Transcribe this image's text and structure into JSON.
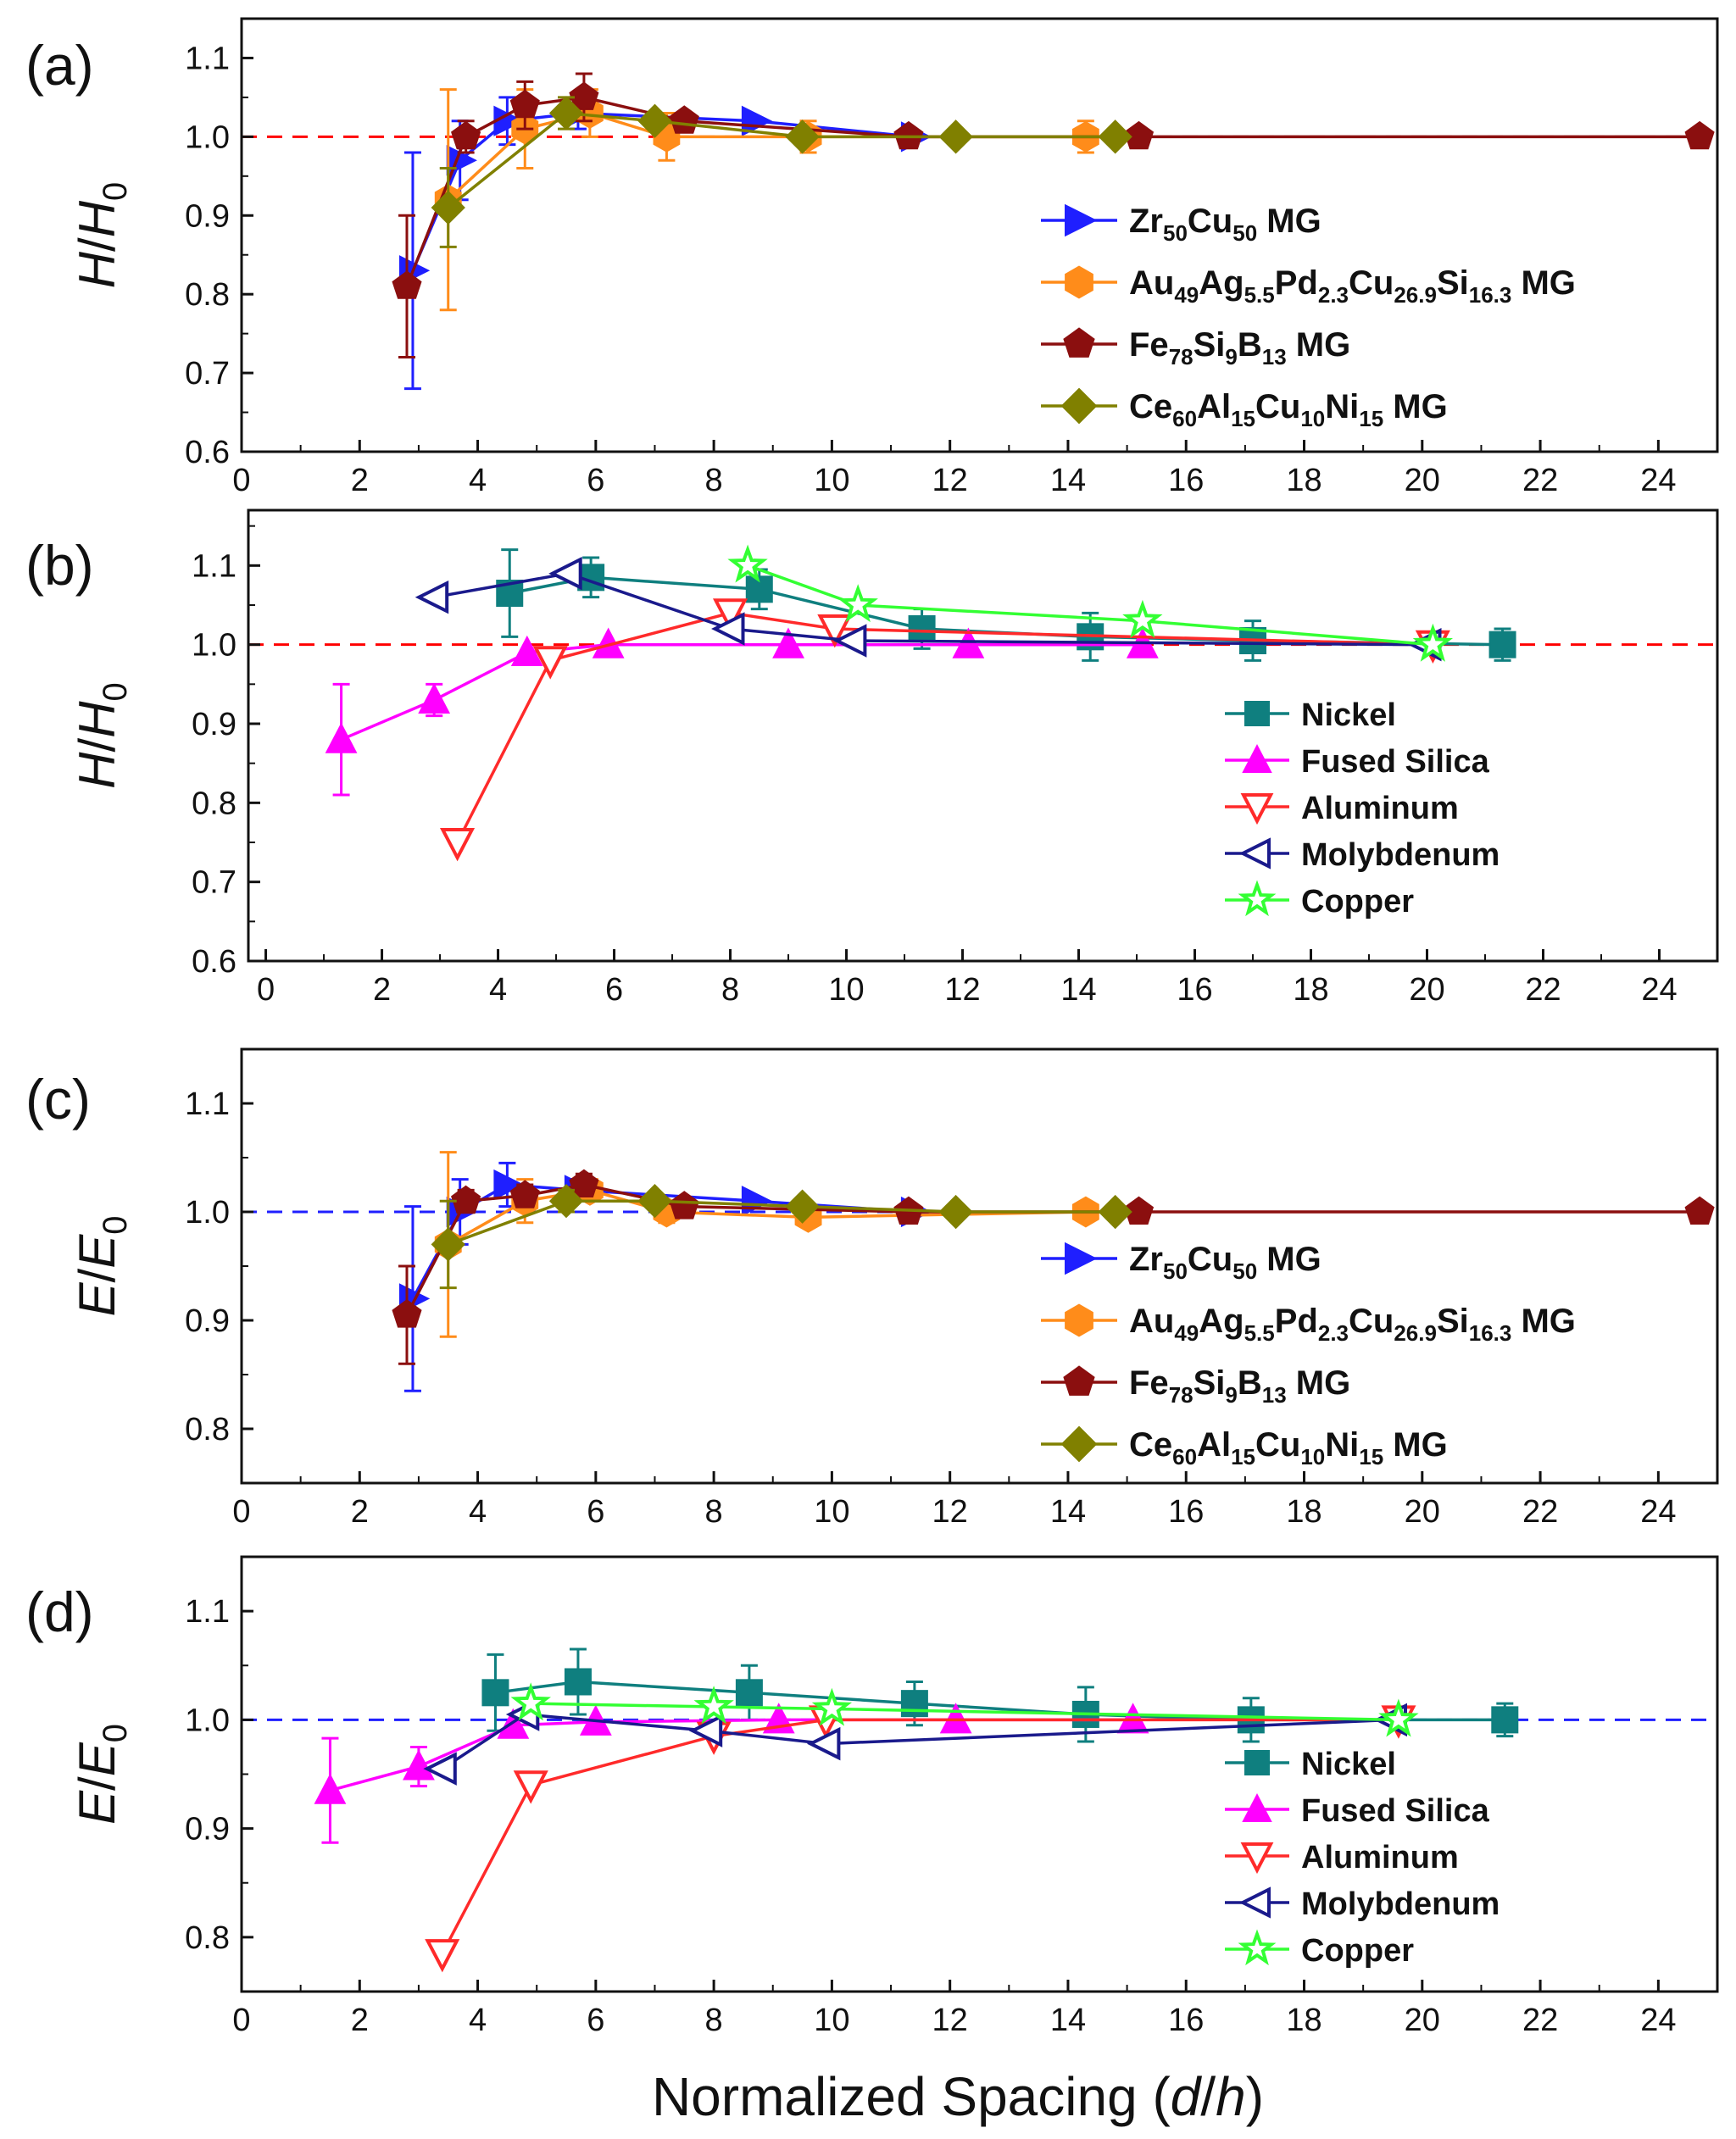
{
  "figure": {
    "xlabel_prefix": "Normalized Spacing (",
    "xlabel_var_d": "d",
    "xlabel_slash": "/",
    "xlabel_var_h": "h",
    "xlabel_suffix": ")"
  },
  "chart_data": [
    {
      "panel": "(a)",
      "type": "line",
      "ylabel_var": "H",
      "ylabel_sep": "/",
      "ylabel_base": "H",
      "ylabel_sub": "0",
      "xlim": [
        0,
        25
      ],
      "ylim": [
        0.6,
        1.15
      ],
      "xticks": [
        "0",
        "2",
        "4",
        "6",
        "8",
        "10",
        "12",
        "14",
        "16",
        "18",
        "20",
        "22",
        "24"
      ],
      "yticks": [
        "0.6",
        "0.7",
        "0.8",
        "0.9",
        "1.0",
        "1.1"
      ],
      "reference_line": {
        "y": 1.0,
        "color": "#ff0000",
        "style": "dashed"
      },
      "legend_position": "center-right",
      "series": [
        {
          "name_parts": [
            [
              "Zr",
              ""
            ],
            [
              "50",
              "sub"
            ],
            [
              "Cu",
              ""
            ],
            [
              "50",
              "sub"
            ],
            [
              " MG",
              ""
            ]
          ],
          "marker": "triangle-right",
          "color": "#1f1fff",
          "line_color": "#1f1fff",
          "filled": true,
          "x": [
            2.9,
            3.7,
            4.5,
            5.7,
            8.7,
            11.4
          ],
          "y": [
            0.83,
            0.97,
            1.02,
            1.03,
            1.02,
            1.0
          ],
          "err": [
            0.15,
            0.05,
            0.03,
            0.02,
            0.0,
            0.0
          ]
        },
        {
          "name_parts": [
            [
              "Au",
              ""
            ],
            [
              "49",
              "sub"
            ],
            [
              "Ag",
              ""
            ],
            [
              "5.5",
              "sub"
            ],
            [
              "Pd",
              ""
            ],
            [
              "2.3",
              "sub"
            ],
            [
              "Cu",
              ""
            ],
            [
              "26.9",
              "sub"
            ],
            [
              "Si",
              ""
            ],
            [
              "16.3",
              "sub"
            ],
            [
              " MG",
              ""
            ]
          ],
          "marker": "hexagon",
          "color": "#ff8c1a",
          "line_color": "#ff8c1a",
          "filled": true,
          "x": [
            3.5,
            4.8,
            5.9,
            7.2,
            9.6,
            14.3
          ],
          "y": [
            0.92,
            1.01,
            1.03,
            1.0,
            1.0,
            1.0
          ],
          "err": [
            0.14,
            0.05,
            0.03,
            0.03,
            0.02,
            0.02
          ]
        },
        {
          "name_parts": [
            [
              "Fe",
              ""
            ],
            [
              "78",
              "sub"
            ],
            [
              "Si",
              ""
            ],
            [
              "9",
              "sub"
            ],
            [
              "B",
              ""
            ],
            [
              "13",
              "sub"
            ],
            [
              " MG",
              ""
            ]
          ],
          "marker": "pentagon",
          "color": "#8b0f0f",
          "line_color": "#8b0f0f",
          "filled": true,
          "x": [
            2.8,
            3.8,
            4.8,
            5.8,
            7.5,
            11.3,
            15.2,
            24.7
          ],
          "y": [
            0.81,
            1.0,
            1.04,
            1.05,
            1.02,
            1.0,
            1.0,
            1.0
          ],
          "err": [
            0.09,
            0.02,
            0.03,
            0.03,
            0.0,
            0.0,
            0.0,
            0.0
          ]
        },
        {
          "name_parts": [
            [
              "Ce",
              ""
            ],
            [
              "60",
              "sub"
            ],
            [
              "Al",
              ""
            ],
            [
              "15",
              "sub"
            ],
            [
              "Cu",
              ""
            ],
            [
              "10",
              "sub"
            ],
            [
              "Ni",
              ""
            ],
            [
              "15",
              "sub"
            ],
            [
              " MG",
              ""
            ]
          ],
          "marker": "diamond",
          "color": "#808000",
          "line_color": "#808000",
          "filled": true,
          "x": [
            3.5,
            5.5,
            7.0,
            9.5,
            12.1,
            14.8
          ],
          "y": [
            0.91,
            1.03,
            1.02,
            1.0,
            1.0,
            1.0
          ],
          "err": [
            0.05,
            0.02,
            0.0,
            0.0,
            0.0,
            0.0
          ]
        }
      ]
    },
    {
      "panel": "(b)",
      "type": "line",
      "ylabel_var": "H",
      "ylabel_sep": "/",
      "ylabel_base": "H",
      "ylabel_sub": "0",
      "xlim": [
        -0.3,
        25
      ],
      "ylim": [
        0.6,
        1.17
      ],
      "xticks": [
        "0",
        "2",
        "4",
        "6",
        "8",
        "10",
        "12",
        "14",
        "16",
        "18",
        "20",
        "22",
        "24"
      ],
      "yticks": [
        "0.6",
        "0.7",
        "0.8",
        "0.9",
        "1.0",
        "1.1"
      ],
      "reference_line": {
        "y": 1.0,
        "color": "#ff0000",
        "style": "dashed"
      },
      "legend_position": "center-right",
      "series": [
        {
          "name_parts": [
            [
              "Nickel",
              ""
            ]
          ],
          "marker": "square",
          "color": "#0f7f7f",
          "line_color": "#0f7f7f",
          "filled": true,
          "x": [
            4.2,
            5.6,
            8.5,
            11.3,
            14.2,
            17.0,
            21.3
          ],
          "y": [
            1.065,
            1.085,
            1.07,
            1.02,
            1.01,
            1.005,
            1.0
          ],
          "err": [
            0.055,
            0.025,
            0.025,
            0.025,
            0.03,
            0.025,
            0.02
          ]
        },
        {
          "name_parts": [
            [
              "Fused Silica",
              ""
            ]
          ],
          "marker": "triangle-up",
          "color": "#ff00ff",
          "line_color": "#ff00ff",
          "filled": true,
          "x": [
            1.3,
            2.9,
            4.5,
            5.9,
            9.0,
            12.1,
            15.1
          ],
          "y": [
            0.88,
            0.93,
            0.99,
            1.0,
            1.0,
            1.0,
            1.0
          ],
          "err": [
            0.07,
            0.02,
            0.0,
            0.0,
            0.0,
            0.0,
            0.0
          ]
        },
        {
          "name_parts": [
            [
              "Aluminum",
              ""
            ]
          ],
          "marker": "triangle-down",
          "color": "#ff2a2a",
          "line_color": "#ff2a2a",
          "filled": false,
          "x": [
            3.3,
            4.9,
            8.0,
            9.8,
            20.1
          ],
          "y": [
            0.75,
            0.98,
            1.04,
            1.02,
            1.0
          ],
          "err": [
            0,
            0,
            0,
            0,
            0
          ]
        },
        {
          "name_parts": [
            [
              "Molybdenum",
              ""
            ]
          ],
          "marker": "triangle-left",
          "color": "#1a1a8c",
          "line_color": "#1a1a8c",
          "filled": false,
          "x": [
            2.9,
            5.2,
            8.0,
            10.1,
            20.0
          ],
          "y": [
            1.06,
            1.09,
            1.02,
            1.005,
            1.0
          ],
          "err": [
            0,
            0,
            0,
            0,
            0
          ]
        },
        {
          "name_parts": [
            [
              "Copper",
              ""
            ]
          ],
          "marker": "star",
          "color": "#33ff33",
          "line_color": "#33ff33",
          "filled": false,
          "x": [
            8.3,
            10.2,
            15.1,
            20.1
          ],
          "y": [
            1.1,
            1.05,
            1.03,
            1.0
          ],
          "err": [
            0,
            0,
            0,
            0
          ]
        }
      ]
    },
    {
      "panel": "(c)",
      "type": "line",
      "ylabel_var": "E",
      "ylabel_sep": "/",
      "ylabel_base": "E",
      "ylabel_sub": "0",
      "xlim": [
        0,
        25
      ],
      "ylim": [
        0.75,
        1.15
      ],
      "xticks": [
        "0",
        "2",
        "4",
        "6",
        "8",
        "10",
        "12",
        "14",
        "16",
        "18",
        "20",
        "22",
        "24"
      ],
      "yticks": [
        "0.8",
        "0.9",
        "1.0",
        "1.1"
      ],
      "reference_line": {
        "y": 1.0,
        "color": "#1f1fff",
        "style": "dashed"
      },
      "legend_position": "center-right",
      "series": [
        {
          "name_parts": [
            [
              "Zr",
              ""
            ],
            [
              "50",
              "sub"
            ],
            [
              "Cu",
              ""
            ],
            [
              "50",
              "sub"
            ],
            [
              " MG",
              ""
            ]
          ],
          "marker": "triangle-right",
          "color": "#1f1fff",
          "line_color": "#1f1fff",
          "filled": true,
          "x": [
            2.9,
            3.7,
            4.5,
            5.7,
            8.7,
            11.4
          ],
          "y": [
            0.92,
            1.0,
            1.025,
            1.02,
            1.01,
            1.0
          ],
          "err": [
            0.085,
            0.03,
            0.02,
            0.01,
            0.0,
            0.0
          ]
        },
        {
          "name_parts": [
            [
              "Au",
              ""
            ],
            [
              "49",
              "sub"
            ],
            [
              "Ag",
              ""
            ],
            [
              "5.5",
              "sub"
            ],
            [
              "Pd",
              ""
            ],
            [
              "2.3",
              "sub"
            ],
            [
              "Cu",
              ""
            ],
            [
              "26.9",
              "sub"
            ],
            [
              "Si",
              ""
            ],
            [
              "16.3",
              "sub"
            ],
            [
              " MG",
              ""
            ]
          ],
          "marker": "hexagon",
          "color": "#ff8c1a",
          "line_color": "#ff8c1a",
          "filled": true,
          "x": [
            3.5,
            4.8,
            5.9,
            7.2,
            9.6,
            14.3
          ],
          "y": [
            0.97,
            1.01,
            1.02,
            1.0,
            0.995,
            1.0
          ],
          "err": [
            0.085,
            0.02,
            0.01,
            0.01,
            0.0,
            0.0
          ]
        },
        {
          "name_parts": [
            [
              "Fe",
              ""
            ],
            [
              "78",
              "sub"
            ],
            [
              "Si",
              ""
            ],
            [
              "9",
              "sub"
            ],
            [
              "B",
              ""
            ],
            [
              "13",
              "sub"
            ],
            [
              " MG",
              ""
            ]
          ],
          "marker": "pentagon",
          "color": "#8b0f0f",
          "line_color": "#8b0f0f",
          "filled": true,
          "x": [
            2.8,
            3.8,
            4.8,
            5.8,
            7.5,
            11.3,
            15.2,
            24.7
          ],
          "y": [
            0.905,
            1.01,
            1.015,
            1.025,
            1.005,
            1.0,
            1.0,
            1.0
          ],
          "err": [
            0.045,
            0.01,
            0.01,
            0.01,
            0.0,
            0.0,
            0.0,
            0.0
          ]
        },
        {
          "name_parts": [
            [
              "Ce",
              ""
            ],
            [
              "60",
              "sub"
            ],
            [
              "Al",
              ""
            ],
            [
              "15",
              "sub"
            ],
            [
              "Cu",
              ""
            ],
            [
              "10",
              "sub"
            ],
            [
              "Ni",
              ""
            ],
            [
              "15",
              "sub"
            ],
            [
              " MG",
              ""
            ]
          ],
          "marker": "diamond",
          "color": "#808000",
          "line_color": "#808000",
          "filled": true,
          "x": [
            3.5,
            5.5,
            7.0,
            9.5,
            12.1,
            14.8
          ],
          "y": [
            0.97,
            1.01,
            1.01,
            1.005,
            1.0,
            1.0
          ],
          "err": [
            0.04,
            0.01,
            0.0,
            0.0,
            0.0,
            0.0
          ]
        }
      ]
    },
    {
      "panel": "(d)",
      "type": "line",
      "ylabel_var": "E",
      "ylabel_sep": "/",
      "ylabel_base": "E",
      "ylabel_sub": "0",
      "xlim": [
        0,
        25
      ],
      "ylim": [
        0.75,
        1.15
      ],
      "xticks": [
        "0",
        "2",
        "4",
        "6",
        "8",
        "10",
        "12",
        "14",
        "16",
        "18",
        "20",
        "22",
        "24"
      ],
      "yticks": [
        "0.8",
        "0.9",
        "1.0",
        "1.1"
      ],
      "reference_line": {
        "y": 1.0,
        "color": "#1f1fff",
        "style": "dashed"
      },
      "legend_position": "center-right",
      "series": [
        {
          "name_parts": [
            [
              "Nickel",
              ""
            ]
          ],
          "marker": "square",
          "color": "#0f7f7f",
          "line_color": "#0f7f7f",
          "filled": true,
          "x": [
            4.3,
            5.7,
            8.6,
            11.4,
            14.3,
            17.1,
            21.4
          ],
          "y": [
            1.025,
            1.035,
            1.025,
            1.015,
            1.005,
            1.0,
            1.0
          ],
          "err": [
            0.035,
            0.03,
            0.025,
            0.02,
            0.025,
            0.02,
            0.015
          ]
        },
        {
          "name_parts": [
            [
              "Fused Silica",
              ""
            ]
          ],
          "marker": "triangle-up",
          "color": "#ff00ff",
          "line_color": "#ff00ff",
          "filled": true,
          "x": [
            1.5,
            3.0,
            4.6,
            6.0,
            9.1,
            12.1,
            15.1
          ],
          "y": [
            0.935,
            0.957,
            0.995,
            0.998,
            1.0,
            1.0,
            1.0
          ],
          "err": [
            0.048,
            0.018,
            0.0,
            0.0,
            0.0,
            0.0,
            0.0
          ]
        },
        {
          "name_parts": [
            [
              "Aluminum",
              ""
            ]
          ],
          "marker": "triangle-down",
          "color": "#ff2a2a",
          "line_color": "#ff2a2a",
          "filled": false,
          "x": [
            3.4,
            4.9,
            8.0,
            9.9,
            19.6
          ],
          "y": [
            0.785,
            0.94,
            0.985,
            1.0,
            1.0
          ],
          "err": [
            0,
            0,
            0,
            0,
            0
          ]
        },
        {
          "name_parts": [
            [
              "Molybdenum",
              ""
            ]
          ],
          "marker": "triangle-left",
          "color": "#1a1a8c",
          "line_color": "#1a1a8c",
          "filled": false,
          "x": [
            3.4,
            4.8,
            7.9,
            9.9,
            19.5
          ],
          "y": [
            0.955,
            1.005,
            0.99,
            0.978,
            1.0
          ],
          "err": [
            0,
            0,
            0,
            0,
            0
          ]
        },
        {
          "name_parts": [
            [
              "Copper",
              ""
            ]
          ],
          "marker": "star",
          "color": "#33ff33",
          "line_color": "#33ff33",
          "filled": false,
          "x": [
            4.9,
            8.0,
            10.0,
            19.6
          ],
          "y": [
            1.015,
            1.012,
            1.01,
            1.0
          ],
          "err": [
            0,
            0,
            0,
            0
          ]
        }
      ]
    }
  ]
}
